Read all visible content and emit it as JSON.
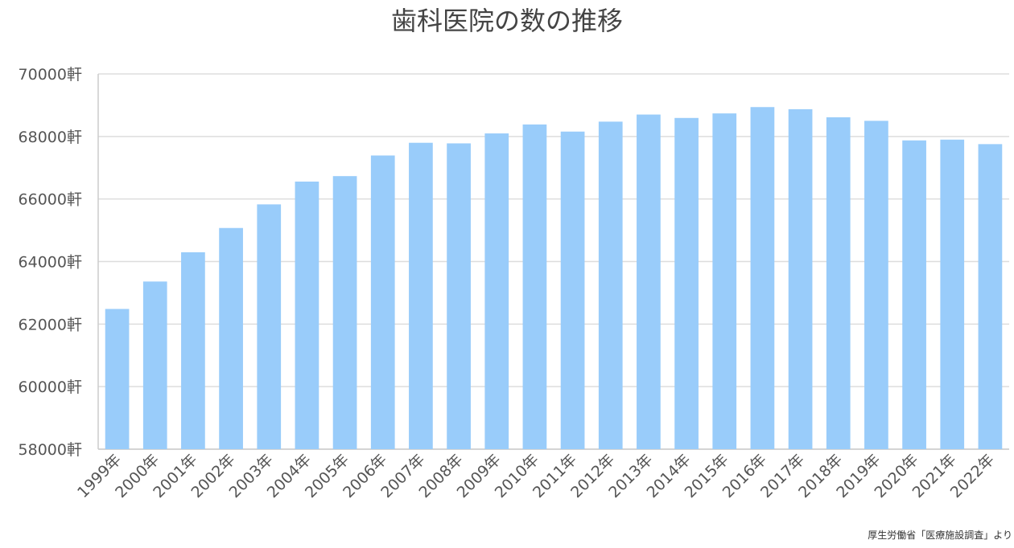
{
  "title": "歯科医院の数の推移",
  "source": "厚生労働省「医療施設調査」より",
  "colors": {
    "bar": "#99ccfa",
    "grid": "#dddddd",
    "axis": "#cccccc",
    "text": "#555555"
  },
  "chart_data": {
    "type": "bar",
    "title": "歯科医院の数の推移",
    "xlabel": "",
    "ylabel": "",
    "ylim": [
      58000,
      70000
    ],
    "y_ticks": [
      58000,
      60000,
      62000,
      64000,
      66000,
      68000,
      70000
    ],
    "y_tick_labels": [
      "58000軒",
      "60000軒",
      "62000軒",
      "64000軒",
      "66000軒",
      "68000軒",
      "70000軒"
    ],
    "grid": true,
    "categories": [
      "1999年",
      "2000年",
      "2001年",
      "2002年",
      "2003年",
      "2004年",
      "2005年",
      "2006年",
      "2007年",
      "2008年",
      "2009年",
      "2010年",
      "2011年",
      "2012年",
      "2013年",
      "2014年",
      "2015年",
      "2016年",
      "2017年",
      "2018年",
      "2019年",
      "2020年",
      "2021年",
      "2022年"
    ],
    "values": [
      62484,
      63361,
      64297,
      65073,
      65828,
      66557,
      66732,
      67392,
      67798,
      67779,
      68097,
      68384,
      68156,
      68474,
      68701,
      68592,
      68737,
      68940,
      68872,
      68613,
      68500,
      67874,
      67899,
      67755
    ]
  }
}
